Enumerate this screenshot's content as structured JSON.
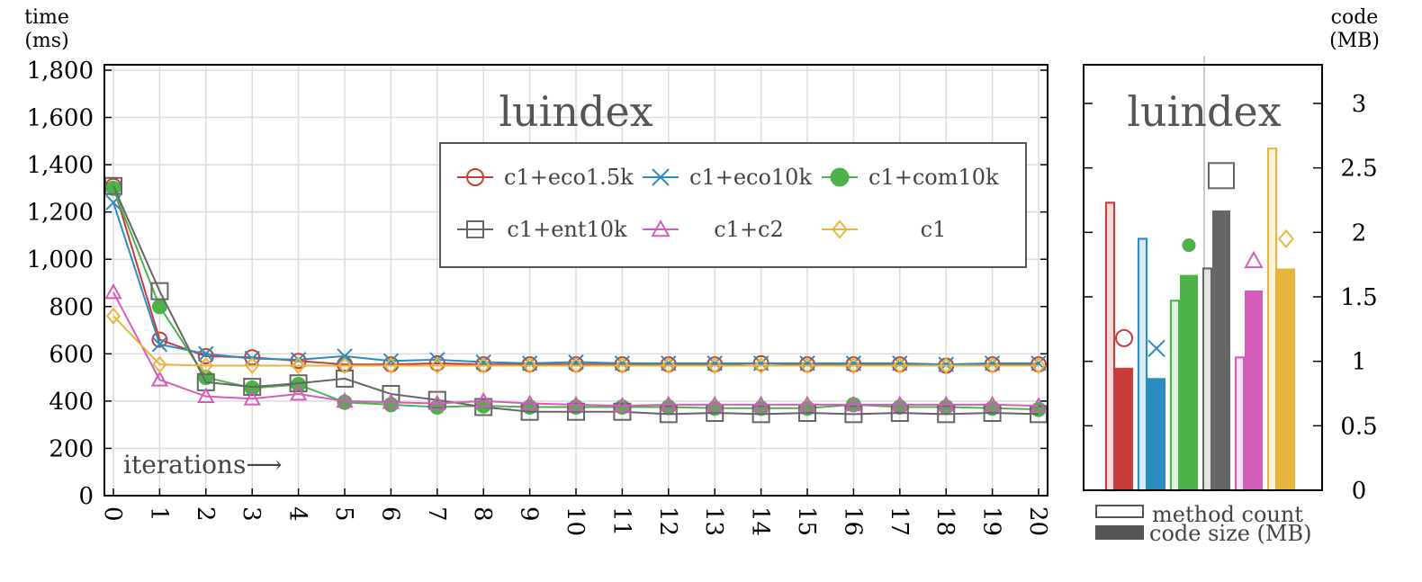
{
  "chart_data": [
    {
      "type": "line",
      "title": "luindex",
      "ylabel_line1": "time",
      "ylabel_line2": "(ms)",
      "annotation": "iterations⟶",
      "ylim": [
        0,
        1800
      ],
      "yticks": [
        0,
        200,
        400,
        600,
        800,
        1000,
        1200,
        1400,
        1600,
        1800
      ],
      "ytick_labels": [
        "0",
        "200",
        "400",
        "600",
        "800",
        "1,000",
        "1,200",
        "1,400",
        "1,600",
        "1,800"
      ],
      "x": [
        0,
        1,
        2,
        3,
        4,
        5,
        6,
        7,
        8,
        9,
        10,
        11,
        12,
        13,
        14,
        15,
        16,
        17,
        18,
        19,
        20
      ],
      "x_tick_labels": [
        "0",
        "1",
        "2",
        "3",
        "4",
        "5",
        "6",
        "7",
        "8",
        "9",
        "10",
        "11",
        "12",
        "13",
        "14",
        "15",
        "16",
        "17",
        "18",
        "19",
        "20"
      ],
      "grid": true,
      "legend_position": "top-right",
      "series": [
        {
          "name": "c1+eco1.5k",
          "color": "#c83c3c",
          "marker": "circle",
          "values": [
            1310,
            660,
            590,
            585,
            570,
            555,
            555,
            560,
            555,
            555,
            555,
            555,
            555,
            555,
            560,
            555,
            555,
            555,
            550,
            555,
            555
          ]
        },
        {
          "name": "c1+eco10k",
          "color": "#2a8cbf",
          "marker": "x",
          "values": [
            1240,
            640,
            600,
            580,
            575,
            590,
            570,
            575,
            565,
            560,
            565,
            560,
            560,
            560,
            560,
            560,
            560,
            560,
            555,
            560,
            560
          ]
        },
        {
          "name": "c1+com10k",
          "color": "#4db24a",
          "marker": "dot",
          "values": [
            1300,
            800,
            500,
            455,
            470,
            395,
            385,
            375,
            380,
            375,
            375,
            375,
            375,
            370,
            370,
            370,
            385,
            375,
            375,
            370,
            365
          ]
        },
        {
          "name": "c1+ent10k",
          "color": "#666666",
          "marker": "square",
          "values": [
            1310,
            865,
            480,
            460,
            475,
            495,
            430,
            405,
            375,
            355,
            355,
            355,
            345,
            350,
            345,
            350,
            345,
            350,
            345,
            350,
            345
          ]
        },
        {
          "name": "c1+c2",
          "color": "#d45cbc",
          "marker": "triangle",
          "values": [
            860,
            490,
            420,
            410,
            430,
            400,
            395,
            390,
            400,
            390,
            385,
            380,
            385,
            385,
            385,
            385,
            385,
            385,
            385,
            385,
            380
          ]
        },
        {
          "name": "c1",
          "color": "#e6b53c",
          "marker": "diamond",
          "values": [
            760,
            555,
            550,
            550,
            550,
            550,
            550,
            550,
            550,
            550,
            550,
            550,
            550,
            550,
            550,
            550,
            550,
            550,
            550,
            550,
            550
          ]
        }
      ]
    },
    {
      "type": "bar",
      "title": "luindex",
      "ylabel_line1": "code",
      "ylabel_line2": "(MB)",
      "ylim": [
        0,
        3.3
      ],
      "yticks": [
        0,
        0.5,
        1,
        1.5,
        2,
        2.5,
        3
      ],
      "ytick_labels": [
        "0",
        "0.5",
        "1",
        "1.5",
        "2",
        "2.5",
        "3"
      ],
      "legend_position": "bottom",
      "legend": [
        "method count",
        "code size (MB)"
      ],
      "series": [
        {
          "name": "c1+eco1.5k",
          "color": "#c83c3c",
          "marker": "circle",
          "method_count": 2.23,
          "code_size": 0.95,
          "marker_value": 1.18
        },
        {
          "name": "c1+eco10k",
          "color": "#2a8cbf",
          "marker": "x",
          "method_count": 1.95,
          "code_size": 0.87,
          "marker_value": 1.1
        },
        {
          "name": "c1+com10k",
          "color": "#4db24a",
          "marker": "dot",
          "method_count": 1.47,
          "code_size": 1.67,
          "marker_value": 1.9
        },
        {
          "name": "c1+ent10k",
          "color": "#666666",
          "marker": "square",
          "method_count": 1.72,
          "code_size": 2.17,
          "marker_value": 2.44
        },
        {
          "name": "c1+c2",
          "color": "#d45cbc",
          "marker": "triangle",
          "method_count": 1.03,
          "code_size": 1.55,
          "marker_value": 1.78
        },
        {
          "name": "c1",
          "color": "#e6b53c",
          "marker": "diamond",
          "method_count": 2.65,
          "code_size": 1.72,
          "marker_value": 1.95
        }
      ]
    }
  ]
}
